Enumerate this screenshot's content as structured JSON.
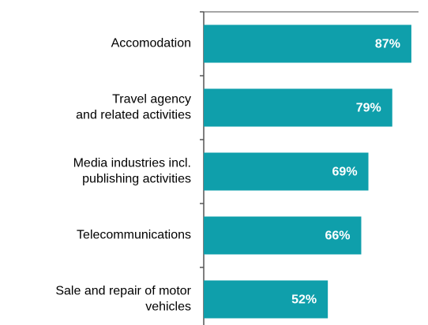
{
  "chart_data": {
    "type": "bar",
    "orientation": "horizontal",
    "categories": [
      [
        "Accomodation"
      ],
      [
        "Travel agency",
        "and related activities"
      ],
      [
        "Media industries incl.",
        "publishing activities"
      ],
      [
        "Telecommunications"
      ],
      [
        "Sale and repair of motor",
        "vehicles"
      ]
    ],
    "values": [
      87,
      79,
      69,
      66,
      52
    ],
    "value_labels": [
      "87%",
      "79%",
      "69%",
      "66%",
      "52%"
    ],
    "color": "#0f9fab",
    "xlim": [
      0,
      90
    ]
  }
}
